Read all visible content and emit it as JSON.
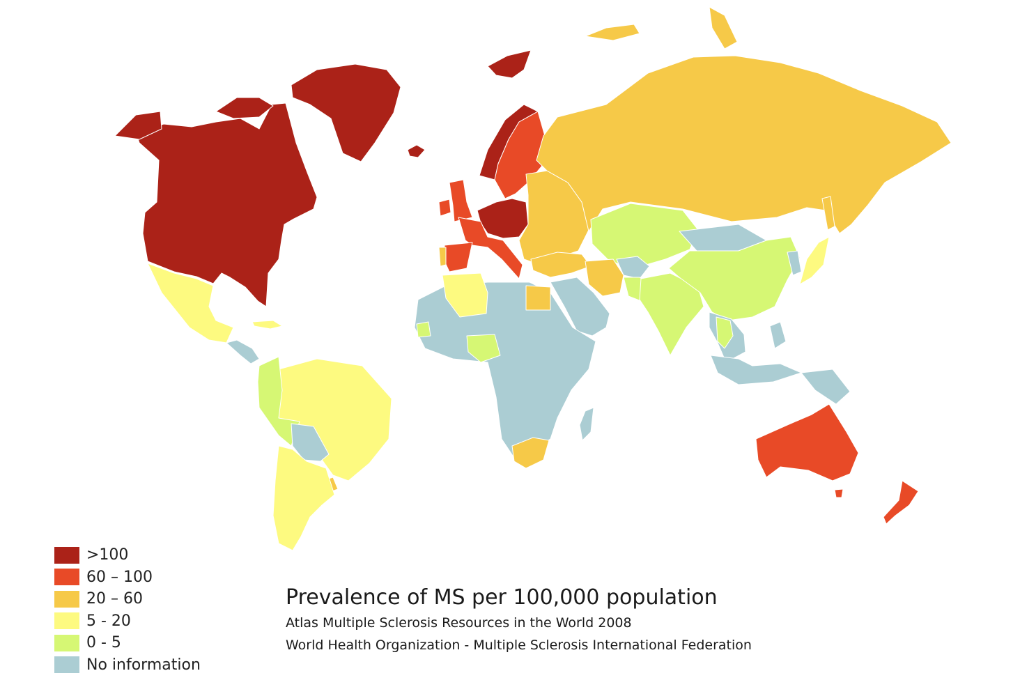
{
  "title": "Prevalence of MS per 100,000 population",
  "subtitle_lines": [
    "Atlas Multiple Sclerosis Resources in the World 2008",
    "World Health Organization - Multiple Sclerosis International Federation"
  ],
  "legend": [
    {
      "label": ">100",
      "color": "#ab2218"
    },
    {
      "label": "60 – 100",
      "color": "#e84a27"
    },
    {
      "label": "20 – 60",
      "color": "#f6c948"
    },
    {
      "label": "5 - 20",
      "color": "#fdfa80"
    },
    {
      "label": "0 - 5",
      "color": "#d6f774"
    },
    {
      "label": "No information",
      "color": "#abcdd3"
    }
  ],
  "regions": [
    {
      "name": "Canada & USA",
      "category": 0
    },
    {
      "name": "Alaska",
      "category": 0
    },
    {
      "name": "Arctic islands",
      "category": 0
    },
    {
      "name": "Greenland",
      "category": 0
    },
    {
      "name": "Iceland",
      "category": 0
    },
    {
      "name": "Svalbard",
      "category": 0
    },
    {
      "name": "Central Europe",
      "category": 0
    },
    {
      "name": "Norway",
      "category": 0
    },
    {
      "name": "Sweden & Finland",
      "category": 1
    },
    {
      "name": "United Kingdom",
      "category": 1
    },
    {
      "name": "Ireland",
      "category": 1
    },
    {
      "name": "France & Italy",
      "category": 1
    },
    {
      "name": "Spain",
      "category": 1
    },
    {
      "name": "Portugal",
      "category": 2
    },
    {
      "name": "Australia",
      "category": 1
    },
    {
      "name": "New Zealand",
      "category": 1
    },
    {
      "name": "Tasmania",
      "category": 1
    },
    {
      "name": "Russia",
      "category": 2
    },
    {
      "name": "Eastern Europe",
      "category": 2
    },
    {
      "name": "Turkey",
      "category": 2
    },
    {
      "name": "Iran",
      "category": 2
    },
    {
      "name": "Egypt",
      "category": 2
    },
    {
      "name": "South Africa",
      "category": 2
    },
    {
      "name": "Uruguay",
      "category": 2
    },
    {
      "name": "Novaya Zemlya",
      "category": 2
    },
    {
      "name": "Severnaya Zemlya",
      "category": 2
    },
    {
      "name": "Sakhalin",
      "category": 2
    },
    {
      "name": "Mexico",
      "category": 3
    },
    {
      "name": "Cuba",
      "category": 3
    },
    {
      "name": "Brazil",
      "category": 3
    },
    {
      "name": "Argentina & Chile",
      "category": 3
    },
    {
      "name": "Algeria & Tunisia",
      "category": 3
    },
    {
      "name": "Japan",
      "category": 3
    },
    {
      "name": "Kazakhstan & Central Asia",
      "category": 4
    },
    {
      "name": "China",
      "category": 4
    },
    {
      "name": "India",
      "category": 4
    },
    {
      "name": "Pakistan",
      "category": 4
    },
    {
      "name": "Thailand",
      "category": 4
    },
    {
      "name": "Colombia & Peru",
      "category": 4
    },
    {
      "name": "Senegal",
      "category": 4
    },
    {
      "name": "Nigeria",
      "category": 4
    },
    {
      "name": "Africa",
      "category": 5
    },
    {
      "name": "Madagascar",
      "category": 5
    },
    {
      "name": "Arabia",
      "category": 5
    },
    {
      "name": "Mongolia",
      "category": 5
    },
    {
      "name": "Afghanistan",
      "category": 5
    },
    {
      "name": "Southeast Asia",
      "category": 5
    },
    {
      "name": "Indonesia",
      "category": 5
    },
    {
      "name": "New Guinea",
      "category": 5
    },
    {
      "name": "Central America",
      "category": 5
    },
    {
      "name": "Bolivia & Paraguay",
      "category": 5
    },
    {
      "name": "Korea",
      "category": 5
    },
    {
      "name": "Philippines",
      "category": 5
    }
  ]
}
